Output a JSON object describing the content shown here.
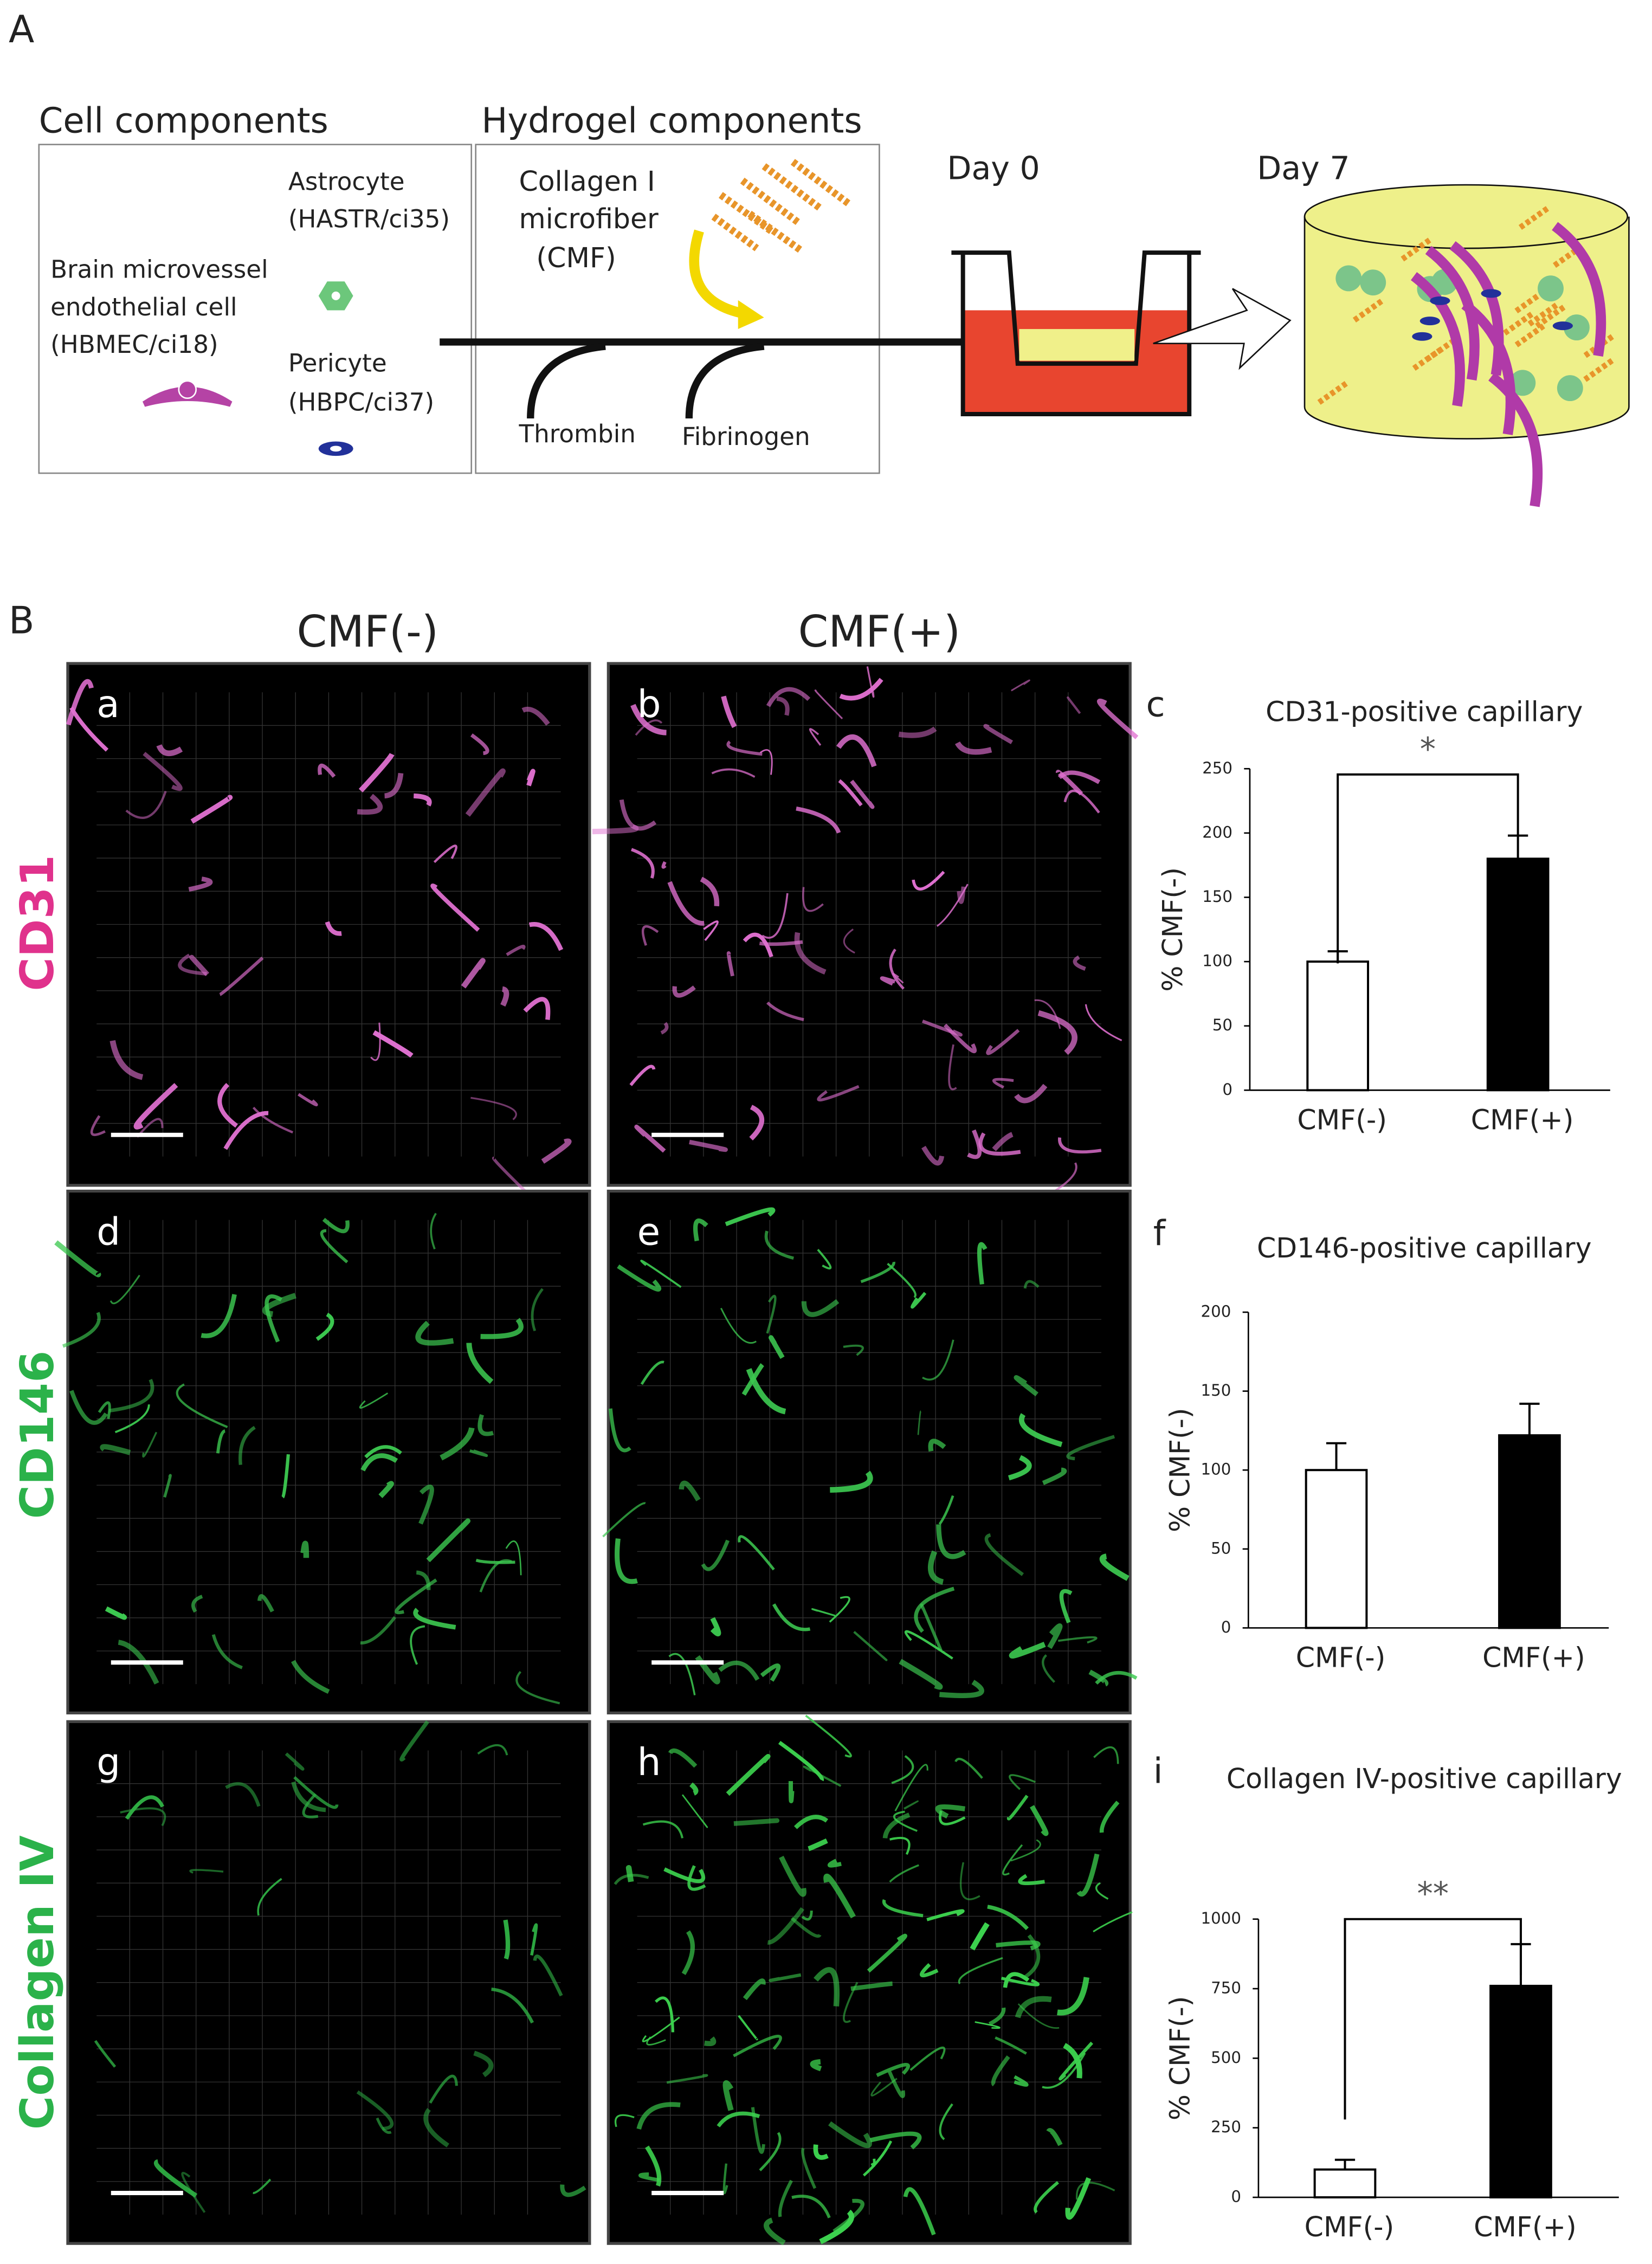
{
  "panel_a": {
    "label": "A",
    "cell_components": {
      "title": "Cell components",
      "astrocyte": [
        "Astrocyte",
        "(HASTR/ci35)"
      ],
      "endothelial": [
        "Brain microvessel",
        "endothelial cell",
        "(HBMEC/ci18)"
      ],
      "pericyte": [
        "Pericyte",
        "(HBPC/ci37)"
      ]
    },
    "hydrogel_components": {
      "title": "Hydrogel components",
      "collagen": [
        "Collagen I",
        "microfiber",
        "(CMF)"
      ],
      "thrombin": "Thrombin",
      "fibrinogen": "Fibrinogen"
    },
    "day0": "Day 0",
    "day7": "Day 7"
  },
  "panel_b": {
    "label": "B",
    "column_headers": [
      "CMF(-)",
      "CMF(+)"
    ],
    "row_labels": [
      "CD31",
      "CD146",
      "Collagen IV"
    ],
    "image_labels": [
      "a",
      "b",
      "d",
      "e",
      "g",
      "h"
    ]
  },
  "chart_data": [
    {
      "type": "bar",
      "label": "c",
      "title": "CD31-positive capillary",
      "ylabel": "% CMF(-)",
      "categories": [
        "CMF(-)",
        "CMF(+)"
      ],
      "values": [
        100,
        180
      ],
      "errors": [
        8,
        18
      ],
      "colors": [
        "#ffffff",
        "#000000"
      ],
      "ylim": [
        0,
        250
      ],
      "yticks": [
        0,
        50,
        100,
        150,
        200,
        250
      ],
      "significance": "*"
    },
    {
      "type": "bar",
      "label": "f",
      "title": "CD146-positive capillary",
      "ylabel": "% CMF(-)",
      "categories": [
        "CMF(-)",
        "CMF(+)"
      ],
      "values": [
        100,
        122
      ],
      "errors": [
        17,
        20
      ],
      "colors": [
        "#ffffff",
        "#000000"
      ],
      "ylim": [
        0,
        200
      ],
      "yticks": [
        0,
        50,
        100,
        150,
        200
      ]
    },
    {
      "type": "bar",
      "label": "i",
      "title": "Collagen IV-positive capillary",
      "ylabel": "% CMF(-)",
      "categories": [
        "CMF(-)",
        "CMF(+)"
      ],
      "values": [
        100,
        760
      ],
      "errors": [
        35,
        150
      ],
      "colors": [
        "#ffffff",
        "#000000"
      ],
      "ylim": [
        0,
        1000
      ],
      "yticks": [
        0,
        250,
        500,
        750,
        1000
      ],
      "significance": "**"
    }
  ]
}
